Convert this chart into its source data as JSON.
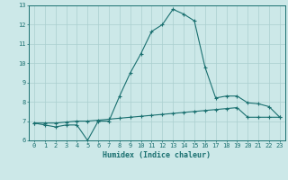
{
  "xlabel": "Humidex (Indice chaleur)",
  "background_color": "#cce8e8",
  "line1_x": [
    0,
    1,
    2,
    3,
    4,
    5,
    6,
    7,
    8,
    9,
    10,
    11,
    12,
    13,
    14,
    15,
    16,
    17,
    18,
    19,
    20,
    21,
    22,
    23
  ],
  "line1_y": [
    6.9,
    6.8,
    6.7,
    6.8,
    6.8,
    6.0,
    7.0,
    7.0,
    8.3,
    9.5,
    10.5,
    11.65,
    12.0,
    12.8,
    12.55,
    12.2,
    9.8,
    8.2,
    8.3,
    8.3,
    7.95,
    7.9,
    7.75,
    7.2
  ],
  "line2_x": [
    0,
    1,
    2,
    3,
    4,
    5,
    6,
    7,
    8,
    9,
    10,
    11,
    12,
    13,
    14,
    15,
    16,
    17,
    18,
    19,
    20,
    21,
    22,
    23
  ],
  "line2_y": [
    6.9,
    6.9,
    6.9,
    6.95,
    7.0,
    7.0,
    7.05,
    7.1,
    7.15,
    7.2,
    7.25,
    7.3,
    7.35,
    7.4,
    7.45,
    7.5,
    7.55,
    7.6,
    7.65,
    7.7,
    7.2,
    7.2,
    7.2,
    7.2
  ],
  "line_color": "#1a7070",
  "ylim": [
    6,
    13
  ],
  "xlim_min": -0.5,
  "xlim_max": 23.5,
  "grid_color": "#aacfcf",
  "tick_color": "#1a7070",
  "font_color": "#1a7070",
  "tick_fontsize": 5.0,
  "xlabel_fontsize": 6.0
}
